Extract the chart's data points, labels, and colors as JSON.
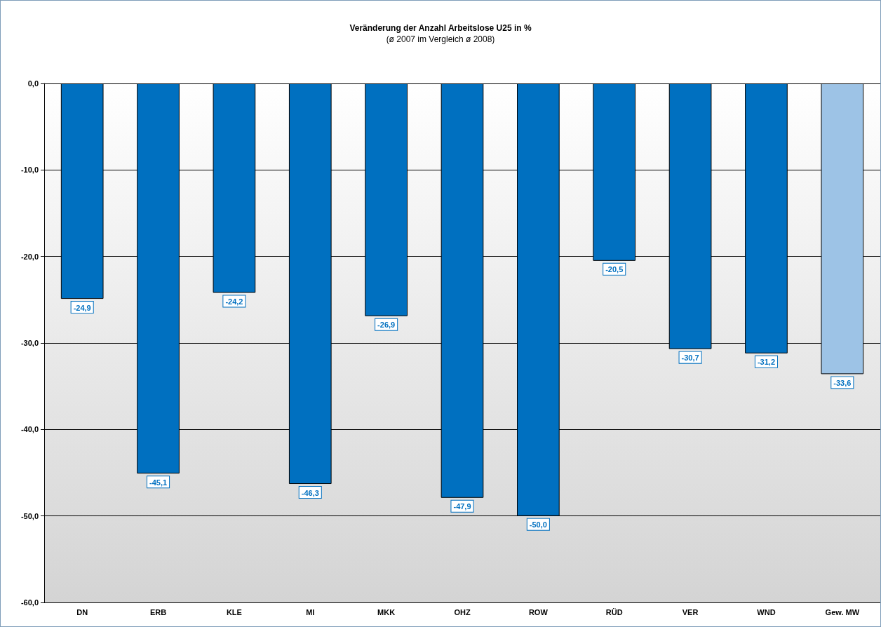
{
  "chart_data": {
    "type": "bar",
    "title": "Veränderung der Anzahl Arbeitslose U25 in %",
    "subtitle": "(ø 2007 im Vergleich ø 2008)",
    "categories": [
      "DN",
      "ERB",
      "KLE",
      "MI",
      "MKK",
      "OHZ",
      "ROW",
      "RÜD",
      "VER",
      "WND",
      "Gew. MW"
    ],
    "values": [
      -24.9,
      -45.1,
      -24.2,
      -46.3,
      -26.9,
      -47.9,
      -50.0,
      -20.5,
      -30.7,
      -31.2,
      -33.6
    ],
    "colors": [
      "#0070c0",
      "#0070c0",
      "#0070c0",
      "#0070c0",
      "#0070c0",
      "#0070c0",
      "#0070c0",
      "#0070c0",
      "#0070c0",
      "#0070c0",
      "#9dc3e6"
    ],
    "value_labels": [
      "-24,9",
      "-45,1",
      "-24,2",
      "-46,3",
      "-26,9",
      "-47,9",
      "-50,0",
      "-20,5",
      "-30,7",
      "-31,2",
      "-33,6"
    ],
    "ylim": [
      -60,
      0
    ],
    "yticks": [
      {
        "value": -60,
        "label": "-60,0"
      },
      {
        "value": -50,
        "label": "-50,0"
      },
      {
        "value": -40,
        "label": "-40,0"
      },
      {
        "value": -30,
        "label": "-30,0"
      },
      {
        "value": -20,
        "label": "-20,0"
      },
      {
        "value": -10,
        "label": "-10,0"
      },
      {
        "value": 0,
        "label": "0,0"
      }
    ],
    "grid": "y"
  }
}
